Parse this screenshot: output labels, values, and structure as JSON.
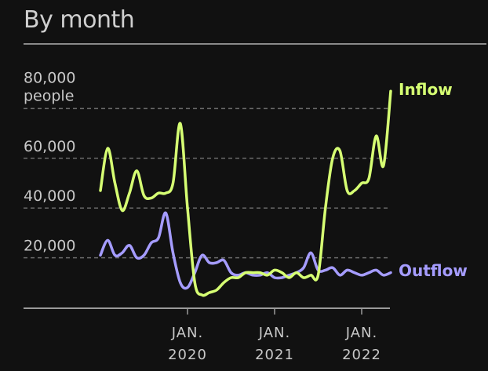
{
  "title": "By month",
  "colors": {
    "inflow": "#d6ff73",
    "outflow": "#a59cff",
    "grid": "#6a6a6a",
    "axis": "#9a9a9a"
  },
  "chart_data": {
    "type": "line",
    "title": "By month",
    "y_unit_label": "people",
    "ylim": [
      0,
      90000
    ],
    "y_ticks": [
      {
        "value": 20000,
        "label": "20,000"
      },
      {
        "value": 40000,
        "label": "40,000"
      },
      {
        "value": 60000,
        "label": "60,000"
      },
      {
        "value": 80000,
        "label": "80,000"
      }
    ],
    "x_ticks": [
      {
        "month": 12,
        "line1": "JAN.",
        "line2": "2020"
      },
      {
        "month": 24,
        "line1": "JAN.",
        "line2": "2021"
      },
      {
        "month": 36,
        "line1": "JAN.",
        "line2": "2022"
      }
    ],
    "grid": true,
    "series": [
      {
        "name": "Inflow",
        "color": "#d6ff73",
        "values": [
          47000,
          64000,
          50000,
          39000,
          46000,
          55000,
          45000,
          44000,
          46000,
          46000,
          50000,
          74000,
          40000,
          10000,
          5000,
          6000,
          7000,
          10000,
          12000,
          12000,
          14000,
          14000,
          14000,
          13000,
          15000,
          14000,
          12000,
          14000,
          12000,
          13000,
          13000,
          40000,
          60000,
          63000,
          47000,
          47000,
          50000,
          52000,
          69000,
          57000,
          87000
        ]
      },
      {
        "name": "Outflow",
        "color": "#a59cff",
        "values": [
          21000,
          27000,
          21000,
          22000,
          25000,
          20000,
          21000,
          26000,
          28000,
          38000,
          22000,
          10000,
          8000,
          14000,
          21000,
          18000,
          18000,
          19000,
          14000,
          13000,
          14000,
          13000,
          13000,
          14000,
          12000,
          12000,
          13000,
          14000,
          16000,
          22000,
          15000,
          15000,
          16000,
          13000,
          15000,
          14000,
          13000,
          14000,
          15000,
          13000,
          14000
        ]
      }
    ]
  }
}
